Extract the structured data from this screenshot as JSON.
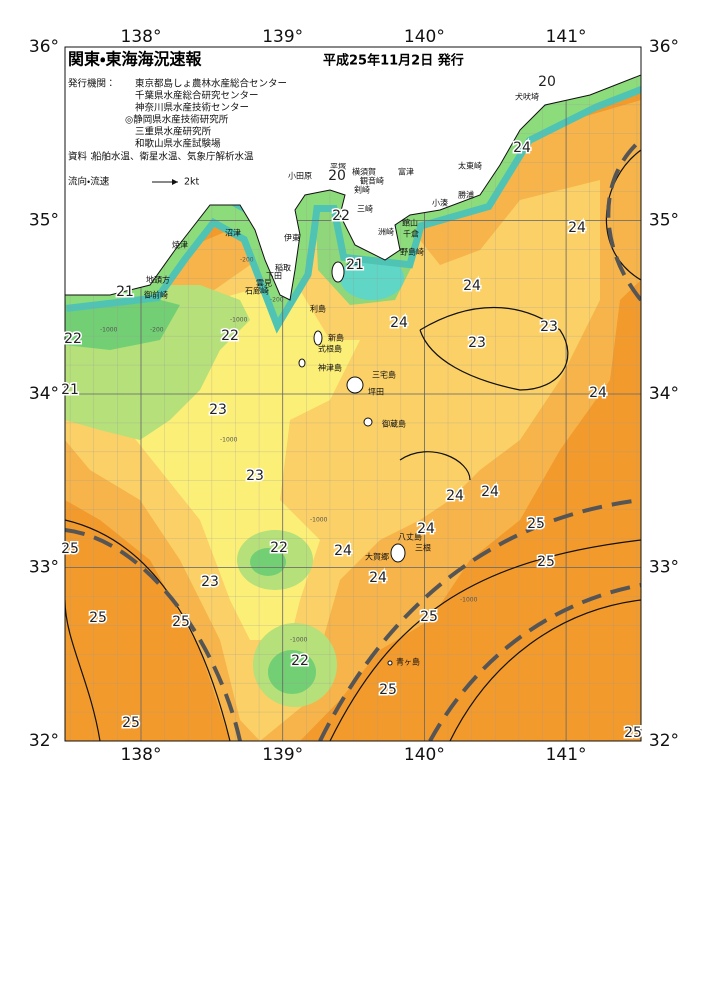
{
  "header": {
    "title": "関東・東海海況速報",
    "date": "平成25年11月2日 発行",
    "agencies_label": "発行機関：",
    "agencies": [
      "東京都島しょ農林水産総合センター",
      "千葉県水産総合研究センター",
      "神奈川県水産技術センター",
      "◎静岡県水産技術研究所",
      "三重県水産研究所",
      "和歌山県水産試験場"
    ],
    "source_label": "資料：",
    "source": "船舶水温、衛星水温、気象庁解析水温",
    "legend_label": "流向・流速",
    "legend_speed": "2kt"
  },
  "map": {
    "lon_ticks": [
      {
        "value": 138,
        "label": "138°"
      },
      {
        "value": 139,
        "label": "139°"
      },
      {
        "value": 140,
        "label": "140°"
      },
      {
        "value": 141,
        "label": "141°"
      }
    ],
    "lat_ticks": [
      {
        "value": 36,
        "label": "36°"
      },
      {
        "value": 35,
        "label": "35°"
      },
      {
        "value": 34,
        "label": "34°"
      },
      {
        "value": 33,
        "label": "33°"
      },
      {
        "value": 32,
        "label": "32°"
      }
    ],
    "places": [
      "犬吠埼",
      "太東崎",
      "勝浦",
      "小湊",
      "小田原",
      "平塚",
      "横須賀",
      "観音崎",
      "富津",
      "剣崎",
      "三崎",
      "館山",
      "千倉",
      "洲崎",
      "野島崎",
      "大島",
      "焼津",
      "沼津",
      "伊東",
      "稲取",
      "下田",
      "雲見",
      "石廊崎",
      "地頭方",
      "御前崎",
      "利島",
      "新島",
      "式根島",
      "神津島",
      "三宅島",
      "坪田",
      "御蔵島",
      "八丈島",
      "大賀郷",
      "三根",
      "青ヶ島"
    ],
    "isotherm_labels": [
      20,
      24,
      24,
      20,
      22,
      21,
      24,
      24,
      23,
      21,
      22,
      22,
      23,
      21,
      24,
      23,
      23,
      24,
      24,
      25,
      24,
      22,
      24,
      25,
      25,
      24,
      23,
      25,
      25,
      25,
      22,
      25,
      25,
      25
    ],
    "depth_labels": [
      -1000,
      -200,
      -200,
      -1000,
      -1000,
      -1000,
      -200,
      -1000,
      -1000
    ]
  }
}
